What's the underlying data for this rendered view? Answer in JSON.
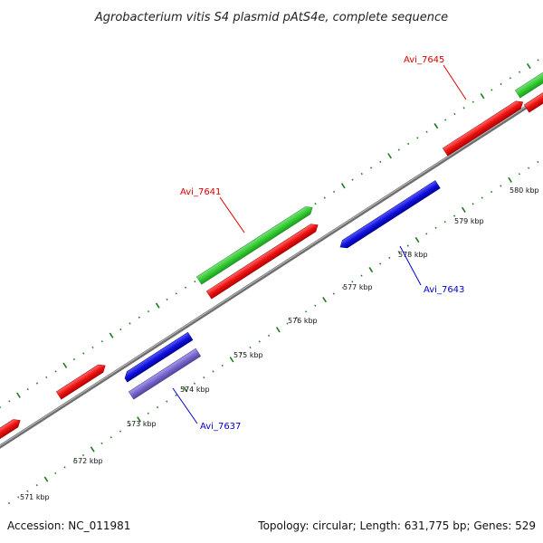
{
  "title": "Agrobacterium vitis S4 plasmid pAtS4e, complete sequence",
  "footer": {
    "accession": "Accession: NC_011981",
    "summary": "Topology: circular; Length: 631,775 bp; Genes: 529"
  },
  "colors": {
    "backbone": "#8c8c8c",
    "ticks": "#1e7a1e",
    "orf_green": "#33cc33",
    "cds_red": "#ee1111",
    "cds_blue": "#1111dd",
    "cds_purple": "#7766cc",
    "label_red": "#dd0000",
    "label_blue": "#0000cc"
  },
  "scale": {
    "tick_labels": [
      "571 kbp",
      "572 kbp",
      "573 kbp",
      "574 kbp",
      "575 kbp",
      "576 kbp",
      "577 kbp",
      "578 kbp",
      "579 kbp",
      "580 kbp"
    ]
  },
  "gene_labels": [
    {
      "name": "Avi_7645",
      "color": "label_red"
    },
    {
      "name": "Avi_7641",
      "color": "label_red"
    },
    {
      "name": "Avi_7643",
      "color": "label_blue"
    },
    {
      "name": "Avi_7637",
      "color": "label_blue"
    }
  ]
}
